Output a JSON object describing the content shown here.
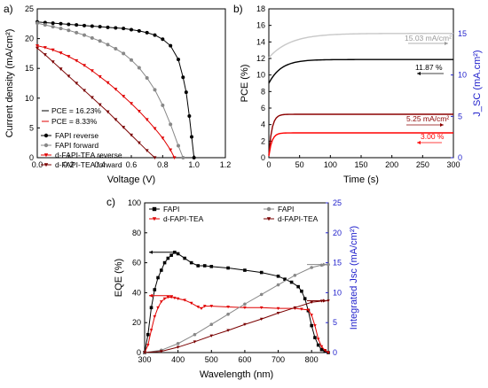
{
  "chart_data": [
    {
      "panel": "a)",
      "type": "scatter",
      "xlabel": "Voltage (V)",
      "ylabel": "Current density (mA/cm²)",
      "xlim": [
        0,
        1.2
      ],
      "ylim": [
        0,
        25
      ],
      "xticks": [
        "0.0",
        "0.2",
        "0.4",
        "0.6",
        "0.8",
        "1.0",
        "1.2"
      ],
      "yticks": [
        "0",
        "5",
        "10",
        "15",
        "20",
        "25"
      ],
      "grid": false,
      "legend_position": "bottom-left",
      "annotations": [
        {
          "text": "PCE = 16.23%",
          "color": "#000000"
        },
        {
          "text": "PCE = 8.33%",
          "color": "#e00000"
        }
      ],
      "series": [
        {
          "name": "FAPI reverse",
          "color": "#000000",
          "marker": "circle",
          "x": [
            0,
            0.05,
            0.1,
            0.15,
            0.2,
            0.25,
            0.3,
            0.35,
            0.4,
            0.45,
            0.5,
            0.55,
            0.6,
            0.65,
            0.7,
            0.75,
            0.8,
            0.85,
            0.9,
            0.93,
            0.95,
            0.97,
            0.985,
            1.0
          ],
          "y": [
            22.8,
            22.7,
            22.6,
            22.5,
            22.4,
            22.3,
            22.2,
            22.1,
            22.0,
            21.9,
            21.8,
            21.7,
            21.5,
            21.3,
            21.0,
            20.6,
            19.9,
            18.8,
            16.5,
            13.5,
            11.0,
            7.0,
            3.5,
            0
          ]
        },
        {
          "name": "FAPI forward",
          "color": "#888888",
          "marker": "circle",
          "x": [
            0,
            0.05,
            0.1,
            0.15,
            0.2,
            0.25,
            0.3,
            0.35,
            0.4,
            0.45,
            0.5,
            0.55,
            0.6,
            0.65,
            0.7,
            0.75,
            0.8,
            0.85,
            0.9,
            0.93
          ],
          "y": [
            22.6,
            22.3,
            22.0,
            21.7,
            21.4,
            21.0,
            20.6,
            20.1,
            19.6,
            19.0,
            18.3,
            17.5,
            16.4,
            15.1,
            13.4,
            11.4,
            8.8,
            5.6,
            2.0,
            0
          ]
        },
        {
          "name": "d-FAPI-TEA reverse",
          "color": "#e00000",
          "marker": "triangle-down",
          "x": [
            0,
            0.05,
            0.1,
            0.15,
            0.2,
            0.25,
            0.3,
            0.35,
            0.4,
            0.45,
            0.5,
            0.55,
            0.6,
            0.65,
            0.7,
            0.75,
            0.8,
            0.85,
            0.875
          ],
          "y": [
            18.8,
            18.5,
            18.1,
            17.6,
            17.0,
            16.3,
            15.5,
            14.6,
            13.6,
            12.6,
            11.5,
            10.3,
            9.1,
            7.8,
            6.4,
            4.9,
            3.3,
            1.3,
            0
          ]
        },
        {
          "name": "d-FAPI-TEA forward",
          "color": "#7a0000",
          "marker": "triangle-down",
          "x": [
            0,
            0.05,
            0.1,
            0.15,
            0.2,
            0.25,
            0.3,
            0.35,
            0.4,
            0.45,
            0.5,
            0.55,
            0.6,
            0.65,
            0.7,
            0.75
          ],
          "y": [
            18.4,
            17.3,
            16.1,
            14.9,
            13.7,
            12.5,
            11.3,
            10.1,
            8.9,
            7.7,
            6.4,
            5.1,
            3.8,
            2.5,
            1.2,
            0
          ]
        }
      ]
    },
    {
      "panel": "b)",
      "type": "line",
      "xlabel": "Time (s)",
      "ylabel": "PCE (%)",
      "y2label": "J_SC (mA.cm²)",
      "xlim": [
        0,
        300
      ],
      "ylim": [
        0,
        18
      ],
      "y2lim": [
        0,
        18
      ],
      "xticks": [
        "0",
        "50",
        "100",
        "150",
        "200",
        "250",
        "300"
      ],
      "yticks": [
        "0",
        "2",
        "4",
        "6",
        "8",
        "10",
        "12",
        "14",
        "16",
        "18"
      ],
      "y2ticks": [
        "0",
        "5",
        "10",
        "15"
      ],
      "annotations": [
        {
          "text": "15.03 mA/cm²",
          "color": "#999999"
        },
        {
          "text": "11.87 %",
          "color": "#000000"
        },
        {
          "text": "5.25 mA/cm²",
          "color": "#8b0000"
        },
        {
          "text": "3.00 %",
          "color": "#ff0000"
        }
      ],
      "series": [
        {
          "color": "#c8c8c8",
          "axis": "right",
          "start": 12.1,
          "end": 15.03,
          "tau": 35
        },
        {
          "color": "#000000",
          "axis": "left",
          "start": 9.0,
          "end": 11.87,
          "tau": 20
        },
        {
          "color": "#8b0000",
          "axis": "right",
          "start": 0.3,
          "end": 5.25,
          "tau": 5
        },
        {
          "color": "#ff0000",
          "axis": "left",
          "start": 0.2,
          "end": 3.0,
          "tau": 5
        }
      ]
    },
    {
      "panel": "c)",
      "type": "line",
      "xlabel": "Wavelength (nm)",
      "ylabel": "EQE (%)",
      "y2label": "Integrated Jsc (mA/cm²)",
      "xlim": [
        300,
        850
      ],
      "ylim": [
        0,
        100
      ],
      "y2lim": [
        0,
        25
      ],
      "xticks": [
        "300",
        "400",
        "500",
        "600",
        "700",
        "800"
      ],
      "yticks": [
        "0",
        "20",
        "40",
        "60",
        "80",
        "100"
      ],
      "y2ticks": [
        "0",
        "5",
        "10",
        "15",
        "20",
        "25"
      ],
      "legend_position": "top",
      "series": [
        {
          "name": "FAPI",
          "axis": "left",
          "color": "#000000",
          "marker": "square",
          "x": [
            300,
            310,
            320,
            330,
            340,
            350,
            360,
            370,
            380,
            390,
            400,
            420,
            440,
            460,
            480,
            500,
            550,
            600,
            650,
            700,
            720,
            740,
            760,
            770,
            780,
            790,
            800,
            810,
            820,
            830,
            840,
            850
          ],
          "y": [
            0,
            12,
            30,
            42,
            50,
            55,
            60,
            63,
            65,
            67,
            66,
            63,
            60,
            58,
            58,
            57.5,
            56.5,
            55,
            53.5,
            51,
            49,
            47,
            44,
            41,
            36,
            28,
            18,
            10,
            5,
            2,
            1,
            0
          ]
        },
        {
          "name": "d-FAPI-TEA",
          "axis": "left",
          "color": "#e00000",
          "marker": "triangle-down",
          "x": [
            300,
            310,
            320,
            330,
            340,
            350,
            360,
            370,
            380,
            390,
            400,
            420,
            440,
            460,
            470,
            480,
            500,
            550,
            600,
            650,
            700,
            750,
            770,
            790,
            800,
            810,
            820,
            830,
            840,
            850
          ],
          "y": [
            0,
            5,
            15,
            24,
            30,
            34,
            36,
            37,
            37,
            36.5,
            36,
            35,
            33,
            30.5,
            29.5,
            31,
            31,
            30.5,
            30,
            30,
            29.5,
            29.5,
            29,
            28.5,
            25,
            18,
            9,
            4,
            1.5,
            0
          ]
        },
        {
          "name": "FAPI",
          "axis": "right",
          "color": "#888888",
          "marker": "circle",
          "x": [
            300,
            350,
            400,
            450,
            500,
            550,
            600,
            650,
            700,
            750,
            800,
            830,
            850
          ],
          "y": [
            0,
            0.4,
            1.5,
            3.0,
            4.7,
            6.4,
            8.1,
            9.7,
            11.3,
            12.9,
            14.2,
            14.6,
            14.7
          ]
        },
        {
          "name": "d-FAPI-TEA",
          "axis": "right",
          "color": "#7a0000",
          "marker": "triangle-down",
          "x": [
            300,
            350,
            400,
            450,
            500,
            550,
            600,
            650,
            700,
            750,
            800,
            830,
            850
          ],
          "y": [
            0,
            0.2,
            0.9,
            1.8,
            2.8,
            3.7,
            4.7,
            5.6,
            6.6,
            7.5,
            8.4,
            8.6,
            8.65
          ]
        }
      ]
    }
  ]
}
